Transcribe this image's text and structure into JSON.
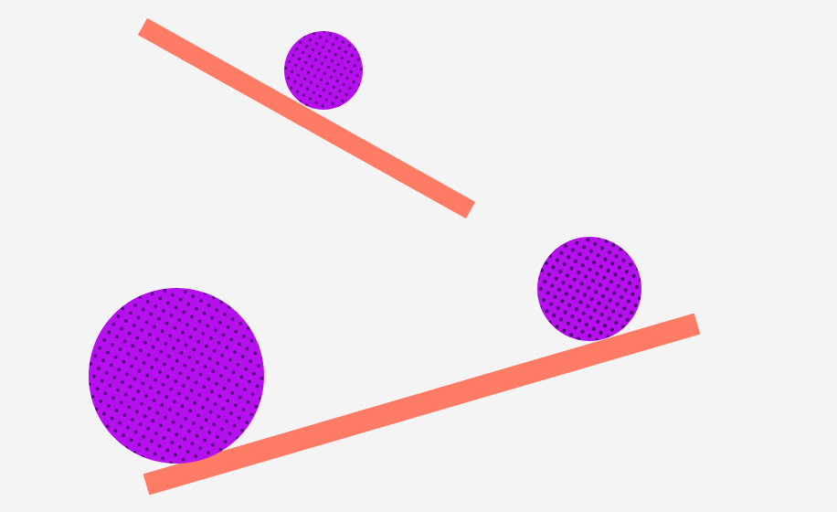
{
  "scene": {
    "background_color": "#f5f4f5",
    "ramp_color": "#fe7b66",
    "ball_fill_color": "#b710ee",
    "ball_dot_color": "#3a0660",
    "ramps": [
      {
        "name": "upper-ramp"
      },
      {
        "name": "lower-ramp"
      }
    ],
    "balls": [
      {
        "name": "small-ball",
        "size": "small",
        "pattern": "halftone-dots"
      },
      {
        "name": "medium-ball",
        "size": "medium",
        "pattern": "halftone-dots"
      },
      {
        "name": "large-ball",
        "size": "large",
        "pattern": "halftone-dots"
      }
    ]
  }
}
